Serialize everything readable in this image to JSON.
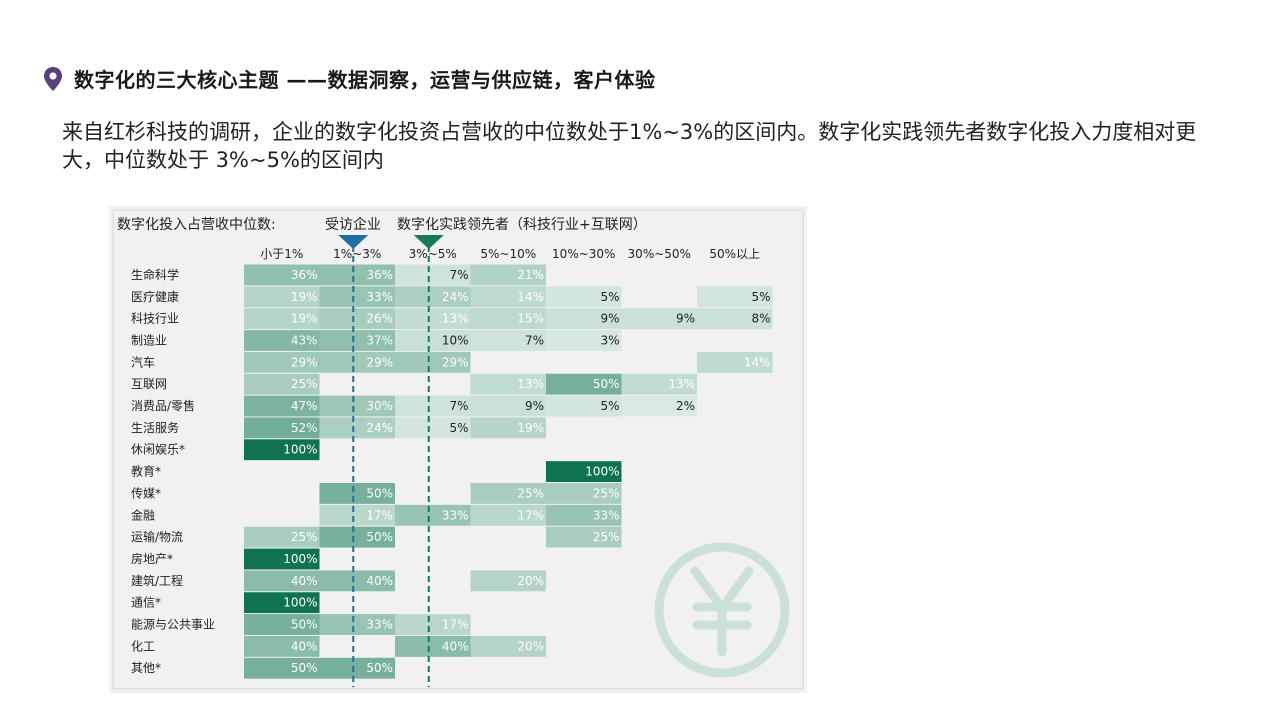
{
  "header": {
    "title": "数字化的三大核心主题 ——数据洞察，运营与供应链，客户体验",
    "icon": "location-pin-icon",
    "icon_color": "#5a3f7a"
  },
  "body": {
    "paragraph": "来自红杉科技的调研，企业的数字化投资占营收的中位数处于1%~3%的区间内。数字化实践领先者数字化投入力度相对更大，中位数处于 3%~5%的区间内"
  },
  "figure": {
    "label": "数字化投入占营收中位数:",
    "legend": [
      {
        "text": "受访企业",
        "color": "#1f6fa0"
      },
      {
        "text": "数字化实践领先者（科技行业+互联网）",
        "color": "#167a5a"
      }
    ],
    "watermark_icon": "yuan-coin-icon"
  },
  "chart_data": {
    "type": "heatmap",
    "columns": [
      "小于1%",
      "1%~3%",
      "3%~5%",
      "5%~10%",
      "10%~30%",
      "30%~50%",
      "50%以上"
    ],
    "rows": [
      "生命科学",
      "医疗健康",
      "科技行业",
      "制造业",
      "汽车",
      "互联网",
      "消费品/零售",
      "生活服务",
      "休闲娱乐*",
      "教育*",
      "传媒*",
      "金融",
      "运输/物流",
      "房地产*",
      "建筑/工程",
      "通信*",
      "能源与公共事业",
      "化工",
      "其他*"
    ],
    "values": [
      [
        36,
        36,
        7,
        21,
        null,
        null,
        null
      ],
      [
        19,
        33,
        24,
        14,
        5,
        null,
        5
      ],
      [
        19,
        26,
        13,
        15,
        9,
        9,
        8
      ],
      [
        43,
        37,
        10,
        7,
        3,
        null,
        null
      ],
      [
        29,
        29,
        29,
        null,
        null,
        null,
        14
      ],
      [
        25,
        null,
        null,
        13,
        50,
        13,
        null
      ],
      [
        47,
        30,
        7,
        9,
        5,
        2,
        null
      ],
      [
        52,
        24,
        5,
        19,
        null,
        null,
        null
      ],
      [
        100,
        null,
        null,
        null,
        null,
        null,
        null
      ],
      [
        null,
        null,
        null,
        null,
        100,
        null,
        null
      ],
      [
        null,
        50,
        null,
        25,
        25,
        null,
        null
      ],
      [
        null,
        17,
        33,
        17,
        33,
        null,
        null
      ],
      [
        25,
        50,
        null,
        null,
        25,
        null,
        null
      ],
      [
        100,
        null,
        null,
        null,
        null,
        null,
        null
      ],
      [
        40,
        40,
        null,
        20,
        null,
        null,
        null
      ],
      [
        100,
        null,
        null,
        null,
        null,
        null,
        null
      ],
      [
        50,
        33,
        17,
        null,
        null,
        null,
        null
      ],
      [
        40,
        null,
        40,
        20,
        null,
        null,
        null
      ],
      [
        50,
        50,
        null,
        null,
        null,
        null,
        null
      ]
    ],
    "value_suffix": "%",
    "markers": [
      {
        "label": "受访企业",
        "column": "1%~3%",
        "color": "#1f6fa0"
      },
      {
        "label": "数字化实践领先者（科技行业+互联网）",
        "column": "3%~5%",
        "color": "#167a5a"
      }
    ],
    "colors": {
      "low": "#dcece4",
      "high": "#0f7350"
    }
  }
}
